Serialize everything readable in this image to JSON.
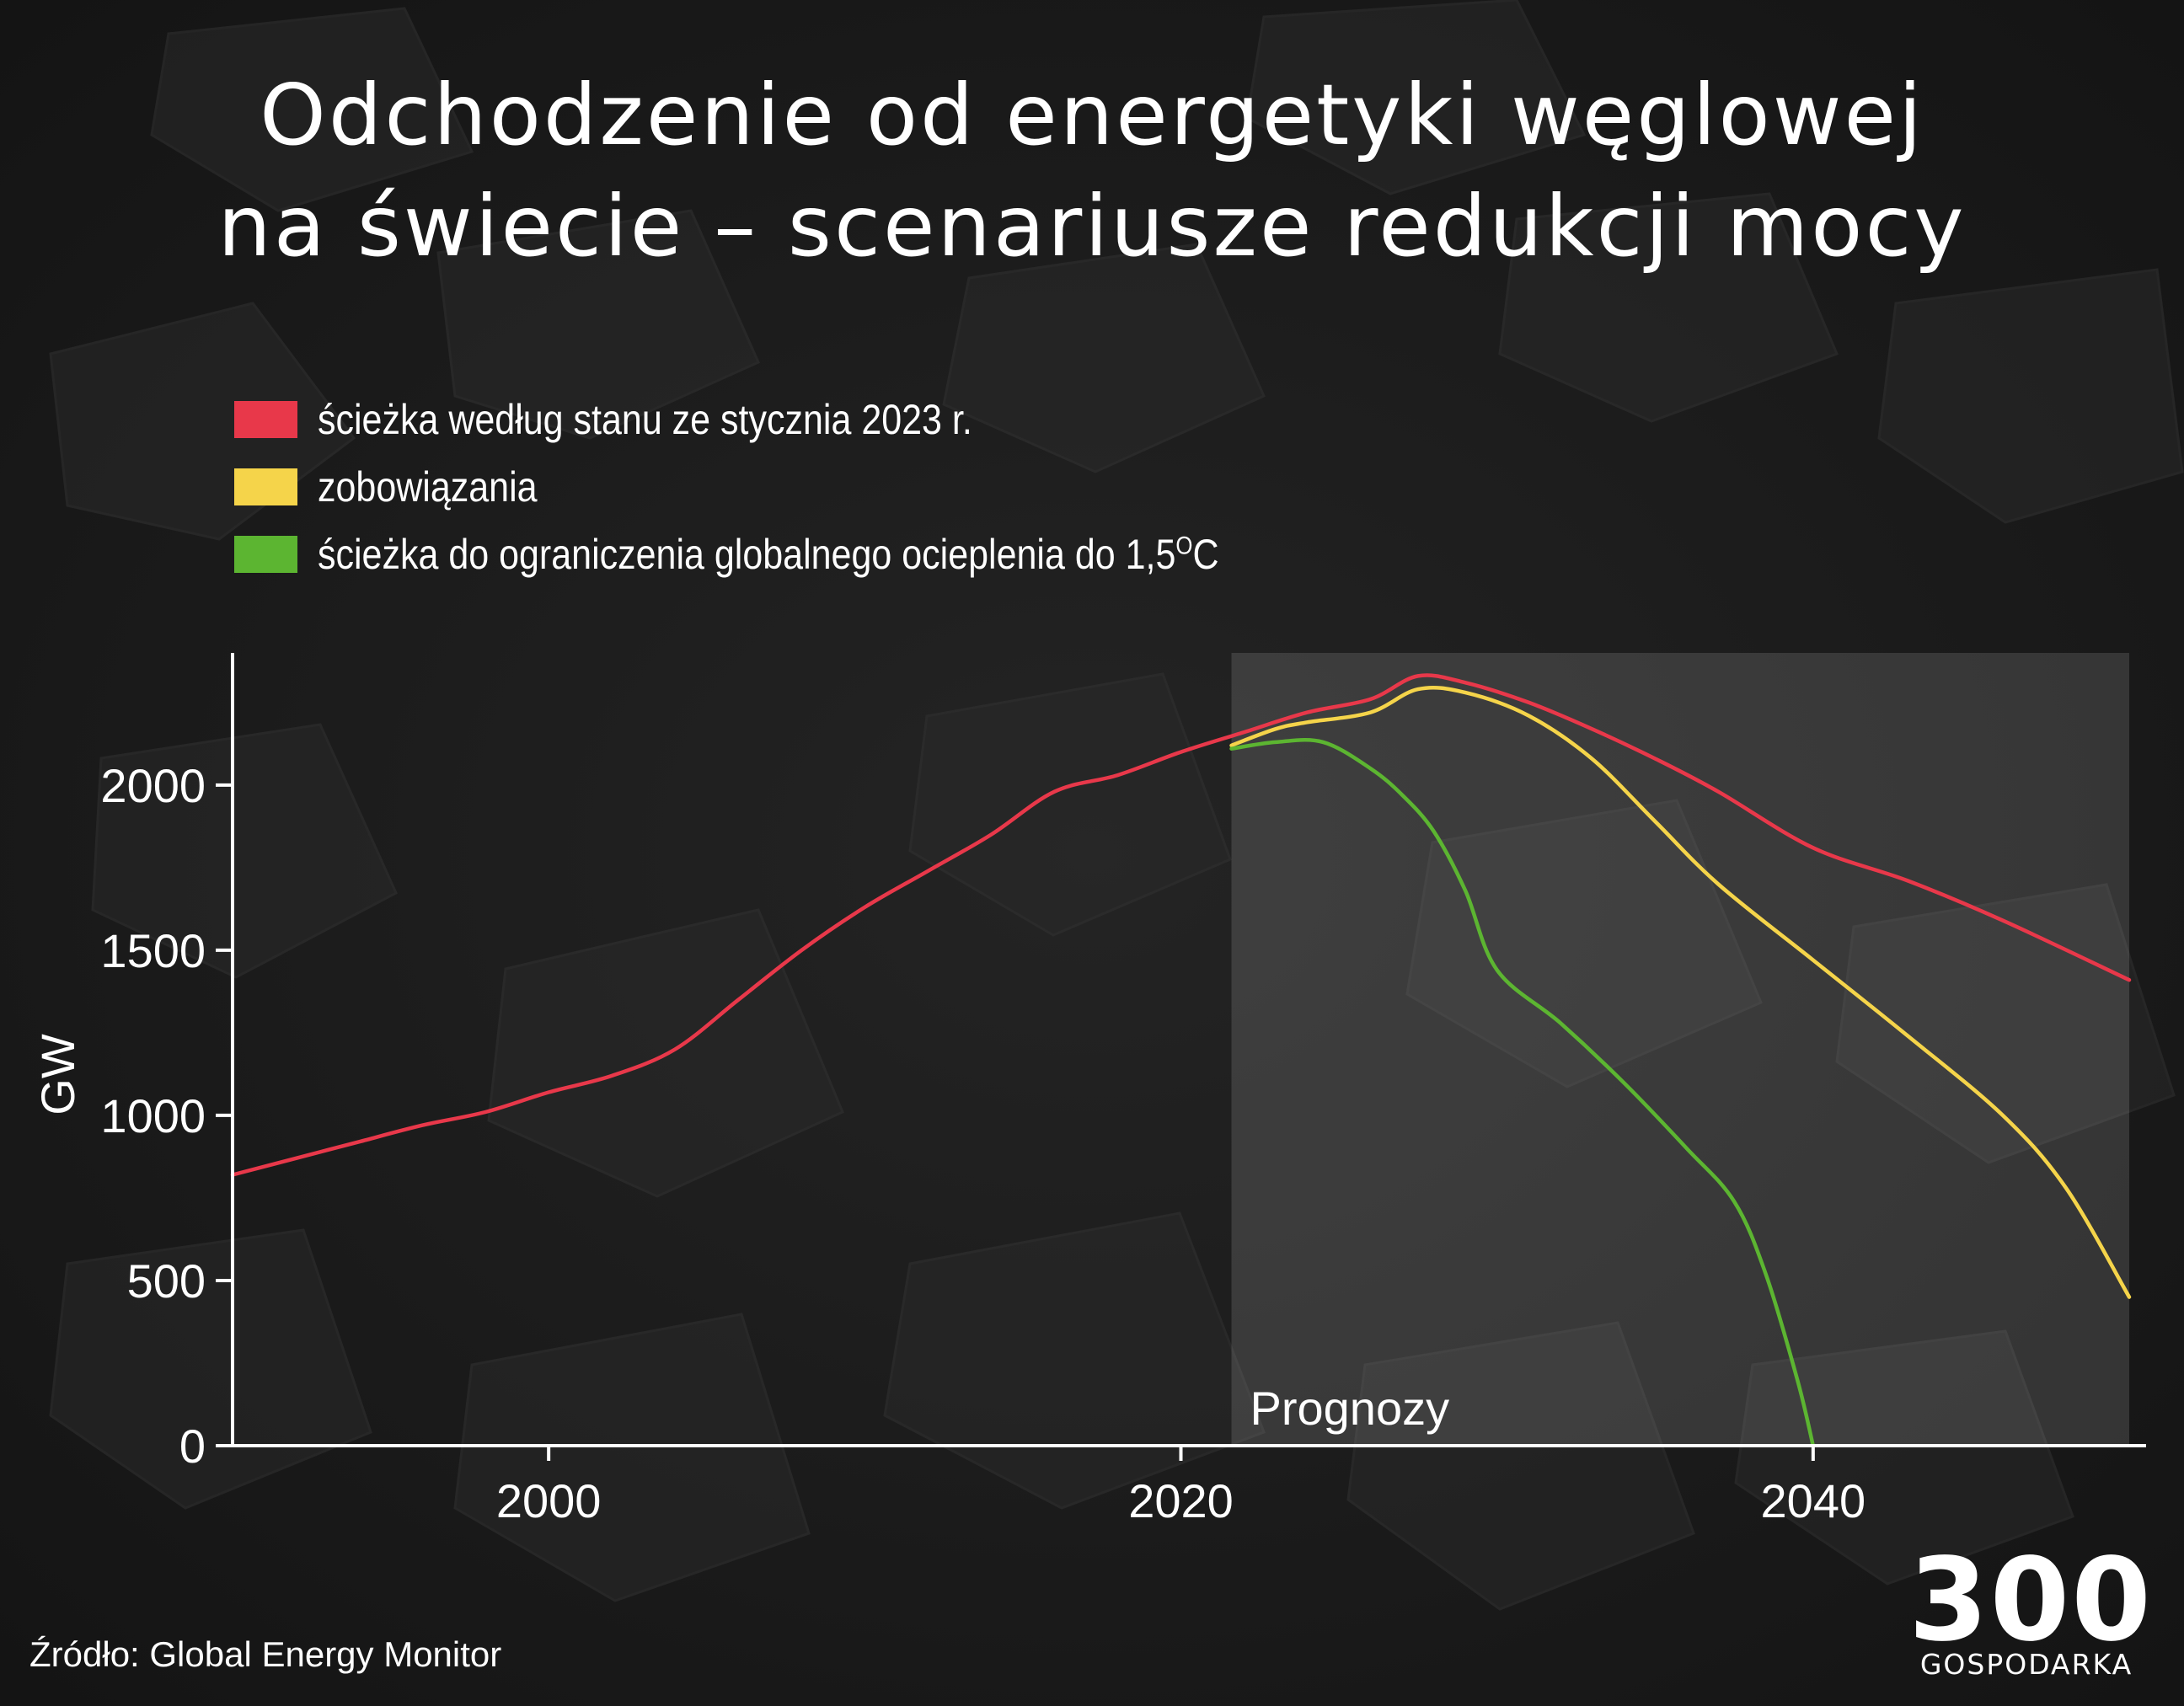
{
  "title_line1": "Odchodzenie od energetyki węglowej",
  "title_line2": "na świecie – scenariusze redukcji mocy",
  "legend": [
    {
      "label": "ścieżka według stanu ze stycznia 2023 r.",
      "color": "#e8384a"
    },
    {
      "label": "zobowiązania",
      "color": "#f5d44a"
    },
    {
      "label": "ścieżka do ograniczenia globalnego ocieplenia do 1,5",
      "sup": "O",
      "suffix": "C",
      "color": "#5cb531"
    }
  ],
  "source": "Źródło: Global Energy Monitor",
  "logo": {
    "number": "300",
    "text": "GOSPODARKA"
  },
  "chart_data": {
    "type": "line",
    "xlim": [
      1990,
      2050
    ],
    "ylim": [
      0,
      2400
    ],
    "ylabel": "GW",
    "xlabel": "",
    "x_ticks": [
      2000,
      2020,
      2040
    ],
    "y_ticks": [
      0,
      500,
      1000,
      1500,
      2000
    ],
    "forecast_region": {
      "label": "Prognozy",
      "x_start": 2021.6,
      "x_end": 2050
    },
    "series": [
      {
        "name": "ścieżka według stanu ze stycznia 2023 r.",
        "color": "#e8384a",
        "x": [
          1990,
          1992,
          1994,
          1996,
          1998,
          2000,
          2002,
          2004,
          2006,
          2008,
          2010,
          2012,
          2014,
          2016,
          2018,
          2020,
          2022,
          2024,
          2026,
          2027.5,
          2029,
          2031,
          2033,
          2035,
          2037,
          2040,
          2043,
          2046,
          2050
        ],
        "y": [
          820,
          870,
          920,
          970,
          1010,
          1070,
          1120,
          1200,
          1350,
          1500,
          1630,
          1740,
          1850,
          1980,
          2030,
          2100,
          2160,
          2220,
          2260,
          2330,
          2310,
          2250,
          2170,
          2080,
          1980,
          1810,
          1710,
          1590,
          1410
        ]
      },
      {
        "name": "zobowiązania",
        "color": "#f5d44a",
        "x": [
          2021.6,
          2023,
          2024,
          2026,
          2027.5,
          2029,
          2031,
          2033,
          2035,
          2037,
          2040,
          2043,
          2046,
          2048,
          2050
        ],
        "y": [
          2120,
          2170,
          2190,
          2220,
          2290,
          2280,
          2210,
          2080,
          1890,
          1700,
          1470,
          1240,
          1000,
          780,
          450
        ]
      },
      {
        "name": "ścieżka do ograniczenia globalnego ocieplenia do 1,5OC",
        "color": "#5cb531",
        "x": [
          2021.6,
          2023,
          2024.5,
          2026,
          2027,
          2028,
          2029,
          2030,
          2032,
          2034,
          2036,
          2037.5,
          2038.5,
          2039.5,
          2040
        ],
        "y": [
          2110,
          2130,
          2130,
          2050,
          1970,
          1860,
          1680,
          1440,
          1280,
          1100,
          900,
          740,
          520,
          200,
          0
        ]
      }
    ]
  }
}
